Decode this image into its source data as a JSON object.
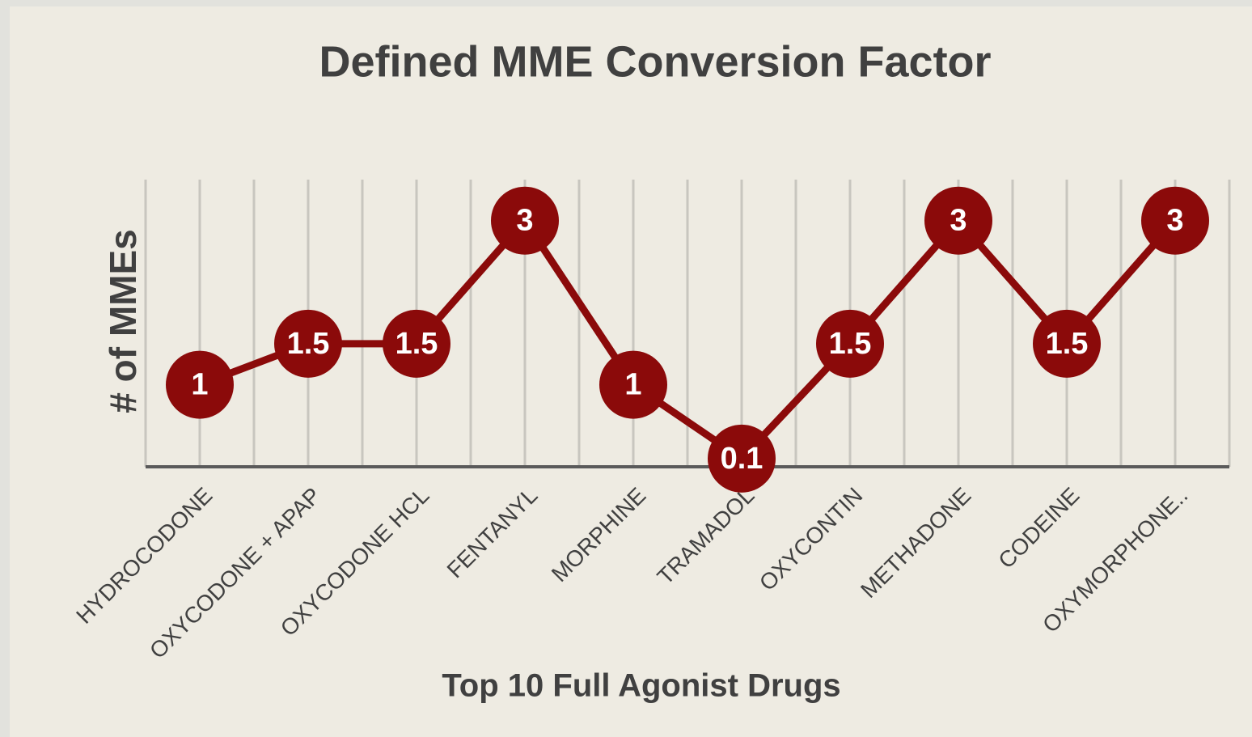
{
  "chart_data": {
    "type": "line",
    "title": "Defined MME Conversion Factor",
    "x_label": "Top 10 Full Agonist Drugs",
    "y_label": "# of MMEs",
    "categories": [
      "HYDROCODONE",
      "OXYCODONE + APAP",
      "OXYCODONE HCL",
      "FENTANYL",
      "MORPHINE",
      "TRAMADOL",
      "OXYCONTIN",
      "METHADONE",
      "CODEINE",
      "OXYMORPHONE.."
    ],
    "values": [
      1,
      1.5,
      1.5,
      3,
      1,
      0.1,
      1.5,
      3,
      1.5,
      3
    ],
    "color": "#8b0a0a",
    "ylim": [
      0,
      3.5
    ],
    "grid": true
  }
}
